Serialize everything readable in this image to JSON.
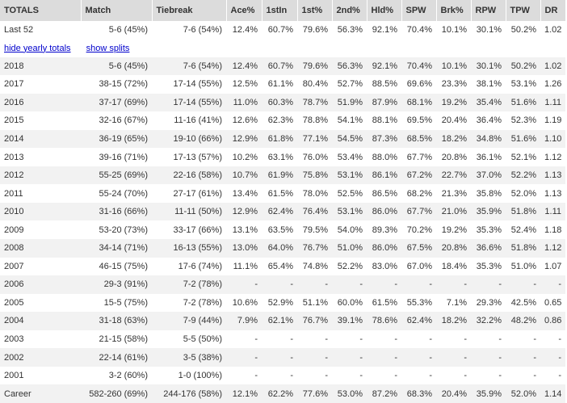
{
  "headers": [
    "TOTALS",
    "Match",
    "Tiebreak",
    "Ace%",
    "1stIn",
    "1st%",
    "2nd%",
    "Hld%",
    "SPW",
    "Brk%",
    "RPW",
    "TPW",
    "DR"
  ],
  "last52": [
    "Last 52",
    "5-6 (45%)",
    "7-6 (54%)",
    "12.4%",
    "60.7%",
    "79.6%",
    "56.3%",
    "92.1%",
    "70.4%",
    "10.1%",
    "30.1%",
    "50.2%",
    "1.02"
  ],
  "links": {
    "hide_yearly": "hide yearly totals",
    "show_splits": "show splits"
  },
  "years": [
    [
      "2018",
      "5-6 (45%)",
      "7-6 (54%)",
      "12.4%",
      "60.7%",
      "79.6%",
      "56.3%",
      "92.1%",
      "70.4%",
      "10.1%",
      "30.1%",
      "50.2%",
      "1.02"
    ],
    [
      "2017",
      "38-15 (72%)",
      "17-14 (55%)",
      "12.5%",
      "61.1%",
      "80.4%",
      "52.7%",
      "88.5%",
      "69.6%",
      "23.3%",
      "38.1%",
      "53.1%",
      "1.26"
    ],
    [
      "2016",
      "37-17 (69%)",
      "17-14 (55%)",
      "11.0%",
      "60.3%",
      "78.7%",
      "51.9%",
      "87.9%",
      "68.1%",
      "19.2%",
      "35.4%",
      "51.6%",
      "1.11"
    ],
    [
      "2015",
      "32-16 (67%)",
      "11-16 (41%)",
      "12.6%",
      "62.3%",
      "78.8%",
      "54.1%",
      "88.1%",
      "69.5%",
      "20.4%",
      "36.4%",
      "52.3%",
      "1.19"
    ],
    [
      "2014",
      "36-19 (65%)",
      "19-10 (66%)",
      "12.9%",
      "61.8%",
      "77.1%",
      "54.5%",
      "87.3%",
      "68.5%",
      "18.2%",
      "34.8%",
      "51.6%",
      "1.10"
    ],
    [
      "2013",
      "39-16 (71%)",
      "17-13 (57%)",
      "10.2%",
      "63.1%",
      "76.0%",
      "53.4%",
      "88.0%",
      "67.7%",
      "20.8%",
      "36.1%",
      "52.1%",
      "1.12"
    ],
    [
      "2012",
      "55-25 (69%)",
      "22-16 (58%)",
      "10.7%",
      "61.9%",
      "75.8%",
      "53.1%",
      "86.1%",
      "67.2%",
      "22.7%",
      "37.0%",
      "52.2%",
      "1.13"
    ],
    [
      "2011",
      "55-24 (70%)",
      "27-17 (61%)",
      "13.4%",
      "61.5%",
      "78.0%",
      "52.5%",
      "86.5%",
      "68.2%",
      "21.3%",
      "35.8%",
      "52.0%",
      "1.13"
    ],
    [
      "2010",
      "31-16 (66%)",
      "11-11 (50%)",
      "12.9%",
      "62.4%",
      "76.4%",
      "53.1%",
      "86.0%",
      "67.7%",
      "21.0%",
      "35.9%",
      "51.8%",
      "1.11"
    ],
    [
      "2009",
      "53-20 (73%)",
      "33-17 (66%)",
      "13.1%",
      "63.5%",
      "79.5%",
      "54.0%",
      "89.3%",
      "70.2%",
      "19.2%",
      "35.3%",
      "52.4%",
      "1.18"
    ],
    [
      "2008",
      "34-14 (71%)",
      "16-13 (55%)",
      "13.0%",
      "64.0%",
      "76.7%",
      "51.0%",
      "86.0%",
      "67.5%",
      "20.8%",
      "36.6%",
      "51.8%",
      "1.12"
    ],
    [
      "2007",
      "46-15 (75%)",
      "17-6 (74%)",
      "11.1%",
      "65.4%",
      "74.8%",
      "52.2%",
      "83.0%",
      "67.0%",
      "18.4%",
      "35.3%",
      "51.0%",
      "1.07"
    ],
    [
      "2006",
      "29-3 (91%)",
      "7-2 (78%)",
      "-",
      "-",
      "-",
      "-",
      "-",
      "-",
      "-",
      "-",
      "-",
      "-"
    ],
    [
      "2005",
      "15-5 (75%)",
      "7-2 (78%)",
      "10.6%",
      "52.9%",
      "51.1%",
      "60.0%",
      "61.5%",
      "55.3%",
      "7.1%",
      "29.3%",
      "42.5%",
      "0.65"
    ],
    [
      "2004",
      "31-18 (63%)",
      "7-9 (44%)",
      "7.9%",
      "62.1%",
      "76.7%",
      "39.1%",
      "78.6%",
      "62.4%",
      "18.2%",
      "32.2%",
      "48.2%",
      "0.86"
    ],
    [
      "2003",
      "21-15 (58%)",
      "5-5 (50%)",
      "-",
      "-",
      "-",
      "-",
      "-",
      "-",
      "-",
      "-",
      "-",
      "-"
    ],
    [
      "2002",
      "22-14 (61%)",
      "3-5 (38%)",
      "-",
      "-",
      "-",
      "-",
      "-",
      "-",
      "-",
      "-",
      "-",
      "-"
    ],
    [
      "2001",
      "3-2 (60%)",
      "1-0 (100%)",
      "-",
      "-",
      "-",
      "-",
      "-",
      "-",
      "-",
      "-",
      "-",
      "-"
    ]
  ],
  "career": [
    "Career",
    "582-260 (69%)",
    "244-176 (58%)",
    "12.1%",
    "62.2%",
    "77.6%",
    "53.0%",
    "87.2%",
    "68.3%",
    "20.4%",
    "35.9%",
    "52.0%",
    "1.14"
  ],
  "colors": {
    "header_bg": "#dcdcdc",
    "zebra_bg": "#f2f2f2",
    "link": "#0000cc",
    "text": "#333333"
  }
}
